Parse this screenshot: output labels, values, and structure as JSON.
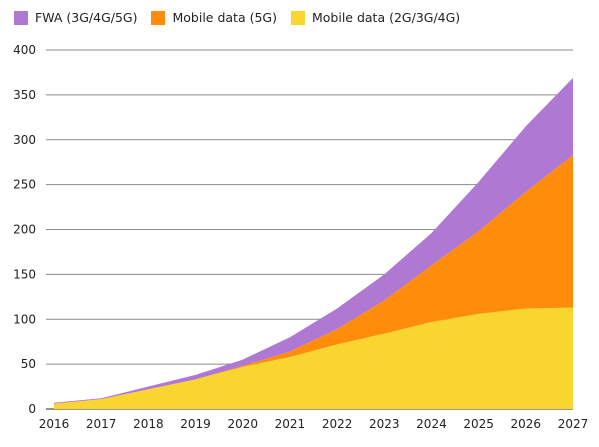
{
  "chart_data": {
    "type": "area",
    "stacked": true,
    "x": [
      "2016",
      "2017",
      "2018",
      "2019",
      "2020",
      "2021",
      "2022",
      "2023",
      "2024",
      "2025",
      "2026",
      "2027"
    ],
    "ylim": [
      0,
      400
    ],
    "yticks": [
      0,
      50,
      100,
      150,
      200,
      250,
      300,
      350,
      400
    ],
    "grid": true,
    "legend_position": "top-left",
    "series": [
      {
        "name": "Mobile data (2G/3G/4G)",
        "color": "#F9D530",
        "values": [
          6,
          11,
          22,
          33,
          47,
          58,
          72,
          84,
          97,
          106,
          112,
          113
        ]
      },
      {
        "name": "Mobile data (5G)",
        "color": "#FF8C0A",
        "values": [
          0,
          0,
          0,
          0,
          1,
          6,
          17,
          37,
          63,
          92,
          130,
          170
        ]
      },
      {
        "name": "FWA (3G/4G/5G)",
        "color": "#AF78D2",
        "values": [
          1,
          1,
          3,
          5,
          7,
          16,
          23,
          29,
          36,
          55,
          73,
          86
        ]
      }
    ]
  }
}
